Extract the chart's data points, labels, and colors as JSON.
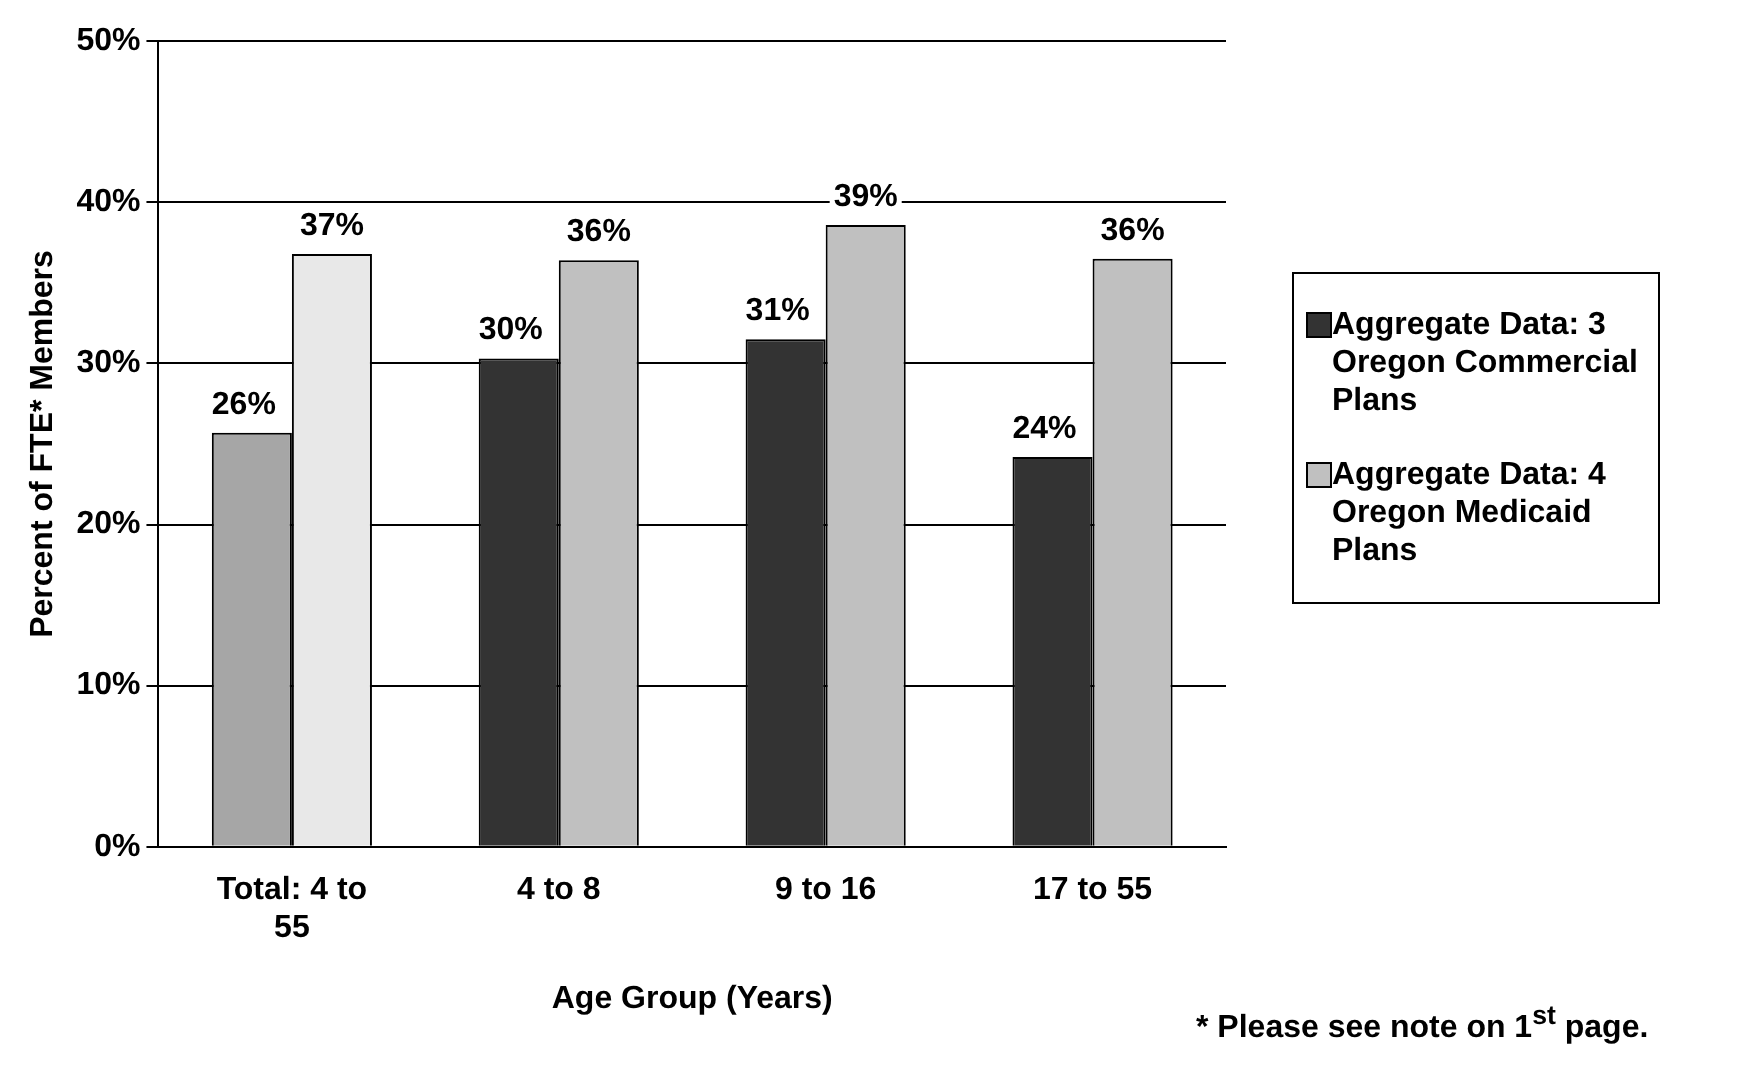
{
  "chart_data": {
    "type": "bar",
    "categories": [
      "Total: 4 to 55",
      "4 to 8",
      "9 to 16",
      "17 to 55"
    ],
    "series": [
      {
        "name": "Aggregate Data: 3 Oregon Commercial Plans",
        "color": "#333333",
        "colors": [
          "#a6a6a6",
          "#333333",
          "#333333",
          "#333333"
        ],
        "values": [
          25.7,
          30.3,
          31.5,
          24.2
        ],
        "value_labels": [
          "26%",
          "30%",
          "31%",
          "24%"
        ]
      },
      {
        "name": "Aggregate Data: 4 Oregon Medicaid Plans",
        "color": "#c0c0c0",
        "colors": [
          "#e8e8e8",
          "#c0c0c0",
          "#c0c0c0",
          "#c0c0c0"
        ],
        "values": [
          36.8,
          36.4,
          38.6,
          36.5
        ],
        "value_labels": [
          "37%",
          "36%",
          "39%",
          "36%"
        ]
      }
    ],
    "xlabel": "Age Group (Years)",
    "ylabel": "Percent of FTE* Members",
    "ylim": [
      0,
      50
    ],
    "yticks": [
      {
        "value": 0,
        "label": "0%"
      },
      {
        "value": 10,
        "label": "10%"
      },
      {
        "value": 20,
        "label": "20%"
      },
      {
        "value": 30,
        "label": "30%"
      },
      {
        "value": 40,
        "label": "40%"
      },
      {
        "value": 50,
        "label": "50%"
      }
    ],
    "grid": "y",
    "legend": "right",
    "annotations": [
      "* Please see note on 1$^{st}$ page."
    ]
  }
}
